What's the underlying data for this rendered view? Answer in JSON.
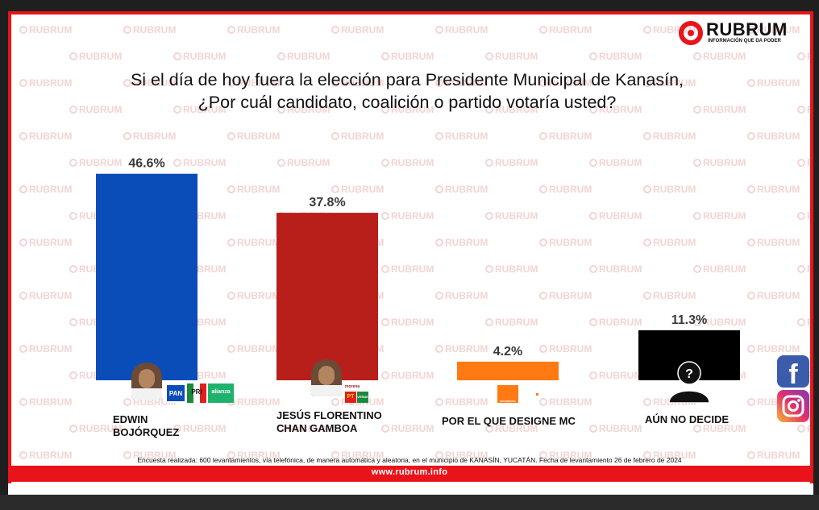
{
  "brand": {
    "name": "RUBRUM",
    "tagline": "INFORMACIÓN QUE DA PODER",
    "watermark": "RUBRUM",
    "url": "www.rubrum.info",
    "accent_color": "#e8141a"
  },
  "question": {
    "line1": "Si el día de hoy fuera la elección para Presidente Municipal de Kanasín,",
    "line2": "¿Por cuál candidato, coalición o partido votaría usted?"
  },
  "chart_data": {
    "type": "bar",
    "title": "",
    "categories": [
      "EDWIN BOJÓRQUEZ",
      "JESÚS FLORENTINO CHAN GAMBOA",
      "POR EL QUE DESIGNE MC",
      "AÚN NO DECIDE"
    ],
    "values": [
      46.6,
      37.8,
      4.2,
      11.3
    ],
    "value_labels": [
      "46.6%",
      "37.8%",
      "4.2%",
      "11.3%"
    ],
    "colors": [
      "#0a4db8",
      "#b81f1a",
      "#ff7a12",
      "#000000"
    ],
    "ylim": [
      0,
      50
    ],
    "grid": false,
    "legend": "none"
  },
  "candidates": [
    {
      "line1": "EDWIN",
      "line2": "BOJÓRQUEZ",
      "parties": [
        "PAN",
        "PRI",
        "alianza"
      ]
    },
    {
      "line1": "JESÚS FLORENTINO",
      "line2": "CHAN GAMBOA",
      "parties": [
        "morena",
        "PT",
        "VERDE"
      ]
    },
    {
      "line1": "POR EL QUE DESIGNE MC",
      "line2": "",
      "parties": [
        "MOVIMIENTO CIUDADANO"
      ]
    },
    {
      "line1": "AÚN NO DECIDE",
      "line2": "",
      "parties": []
    }
  ],
  "footer": {
    "note": "Encuesta realizada: 600 levantamientos, vía telefónica, de manera automática y aleatoria, en el municipio de KANASÍN, YUCATÁN. Fecha de levantamiento 26 de febrero de 2024"
  },
  "social": {
    "icons": [
      "facebook-icon",
      "instagram-icon"
    ]
  }
}
